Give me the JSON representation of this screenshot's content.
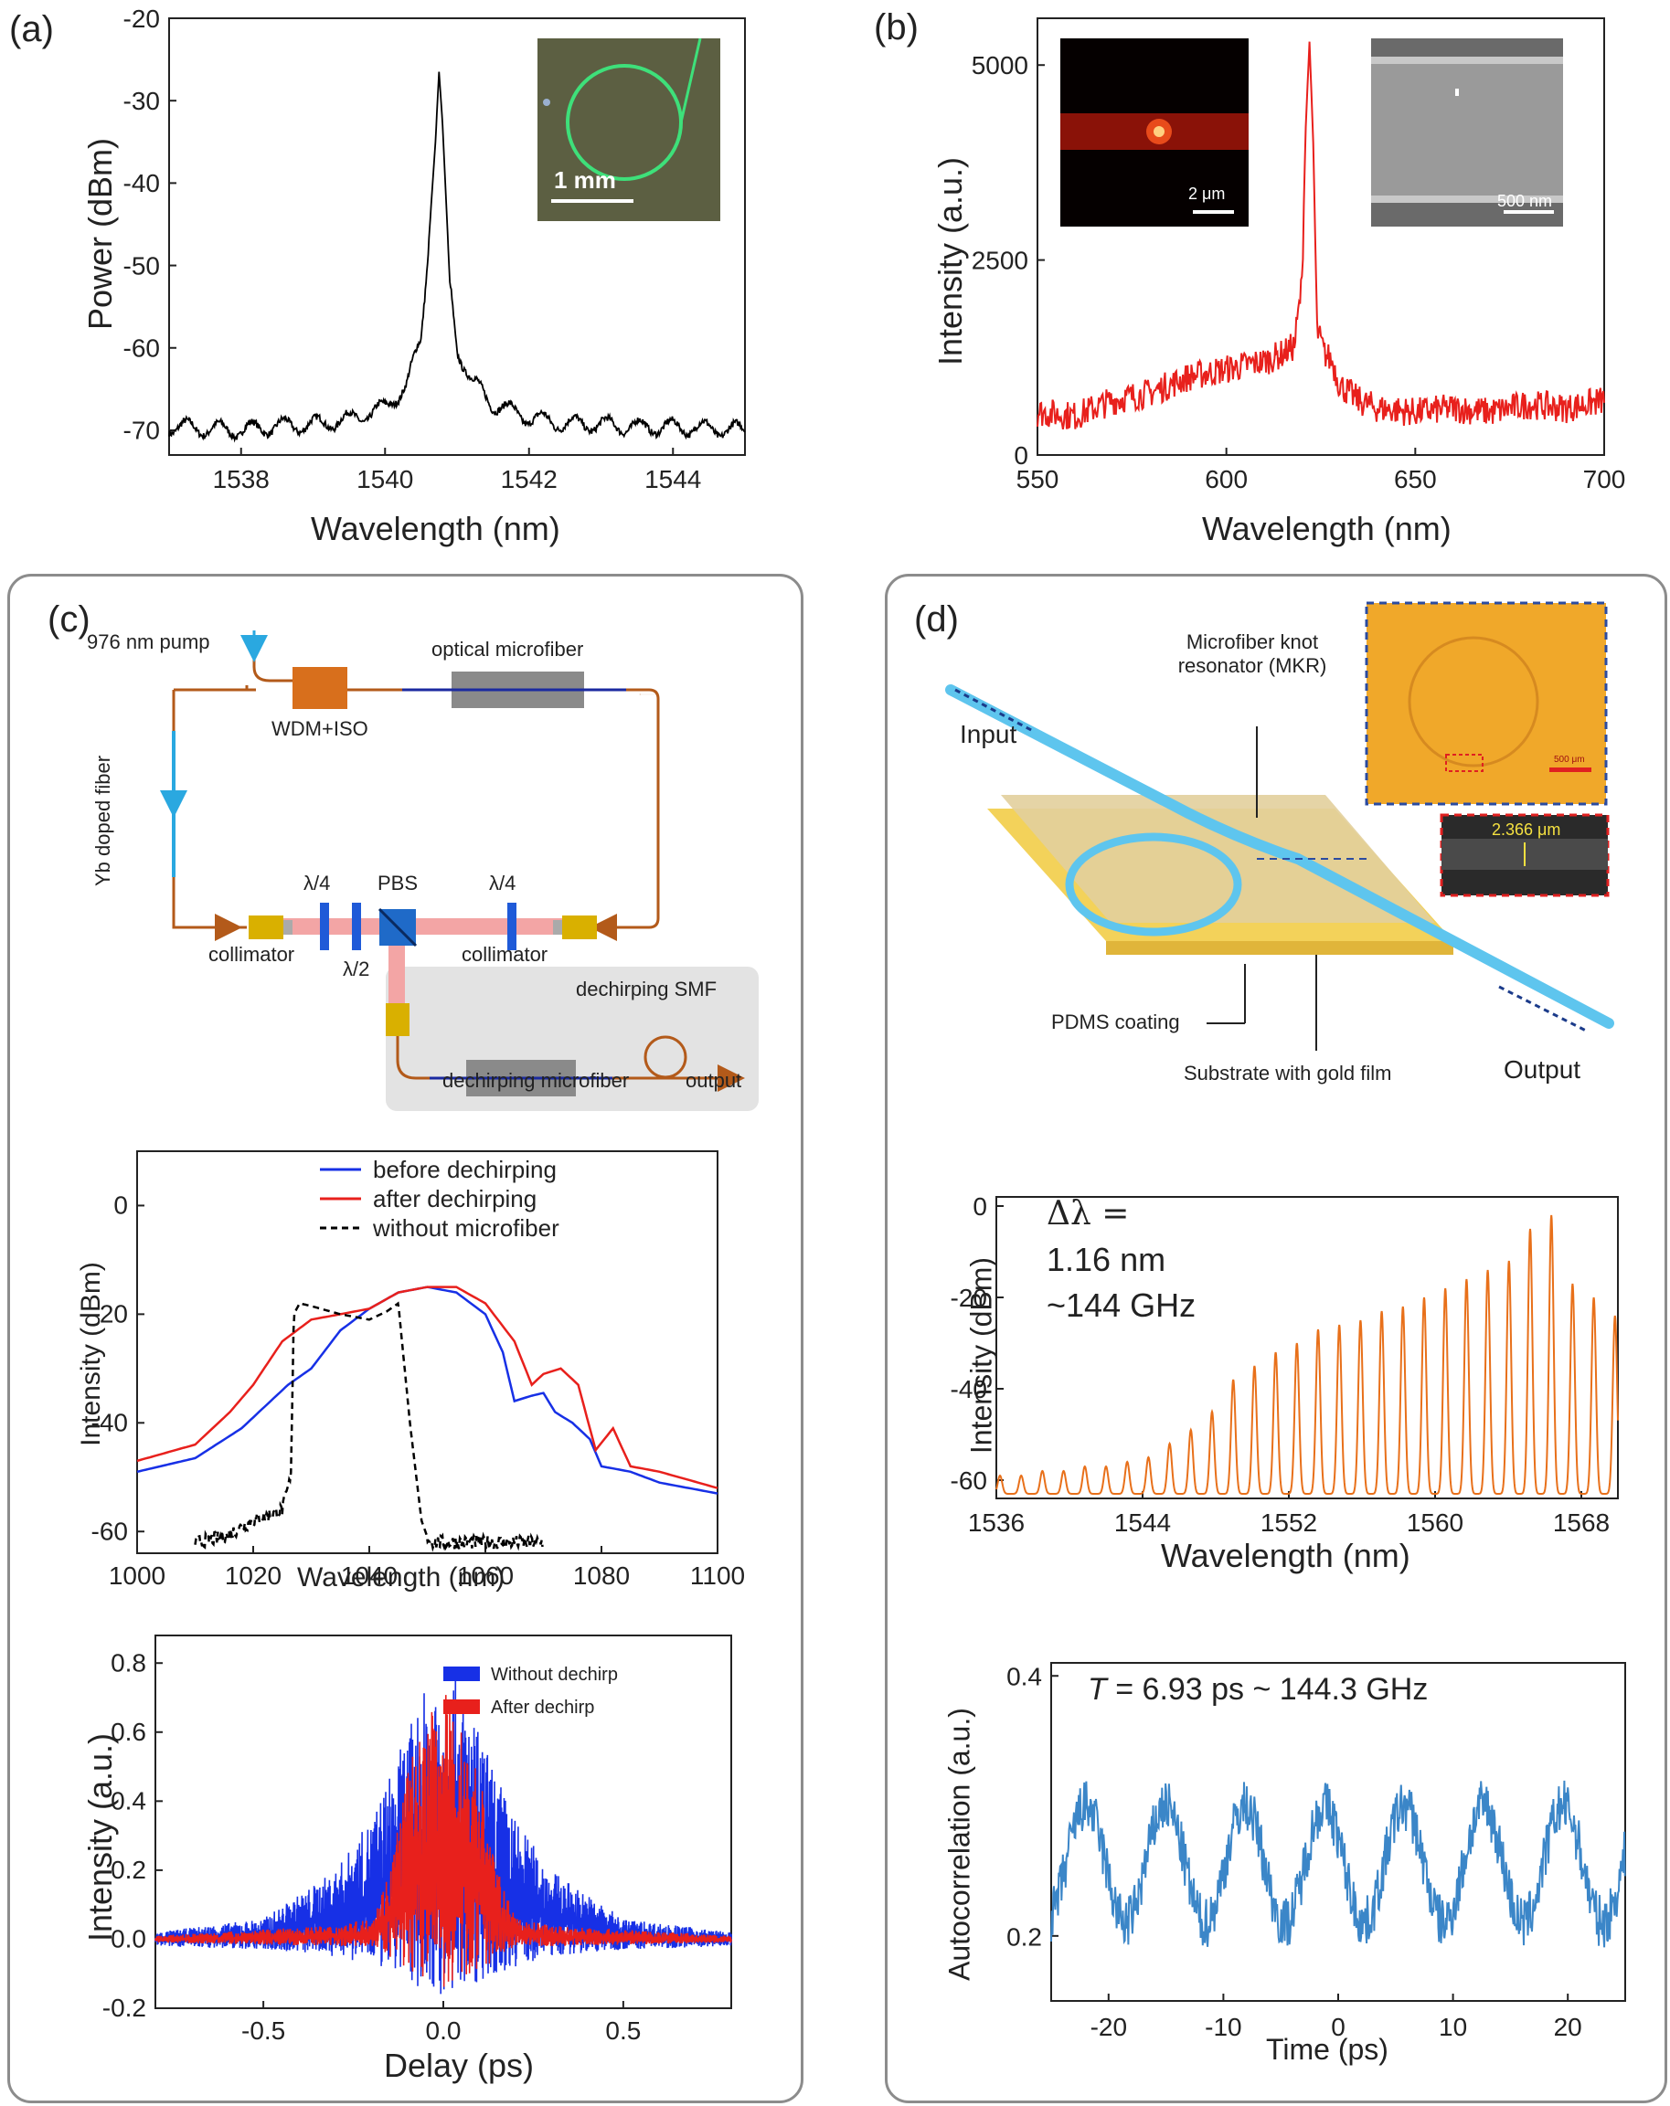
{
  "panels": {
    "a": "(a)",
    "b": "(b)",
    "c": "(c)",
    "d": "(d)"
  },
  "colors": {
    "black": "#000000",
    "red": "#e8201c",
    "blue": "#1730e6",
    "orange": "#e8701a",
    "steelblue": "#3b86c8",
    "fiber": "#b35a1a",
    "grey_box": "#e3e3e3"
  },
  "insets": {
    "a_scale": "1 mm",
    "b_left_scale": "2 μm",
    "b_right_scale": "500 nm",
    "d_scale_small": "500 μm",
    "d_width": "2.366 μm"
  },
  "schematic_c": {
    "pump": "976 nm pump",
    "wdm": "WDM+ISO",
    "microfiber": "optical microfiber",
    "yb": "Yb doped fiber",
    "qwp_left": "λ/4",
    "pbs": "PBS",
    "qwp_right": "λ/4",
    "hwp": "λ/2",
    "collimator_left": "collimator",
    "collimator_right": "collimator",
    "dechirp_smf": "dechirping SMF",
    "dechirp_mf": "dechirping microfiber",
    "output": "output"
  },
  "schematic_d": {
    "input": "Input",
    "output": "Output",
    "mkr": "Microfiber knot resonator (MKR)",
    "pdms": "PDMS coating",
    "substrate": "Substrate with gold film"
  },
  "annotations": {
    "d_spec_1": "Δλ =",
    "d_spec_2": "1.16 nm",
    "d_spec_3": "~144 GHz",
    "d_ac_T": "T",
    "d_ac_rest": " = 6.93 ps ~ 144.3 GHz"
  },
  "chart_data": [
    {
      "id": "a",
      "type": "line",
      "xlabel": "Wavelength (nm)",
      "ylabel": "Power (dBm)",
      "xlim": [
        1537,
        1545
      ],
      "ylim": [
        -73,
        -20
      ],
      "xticks": [
        1538,
        1540,
        1542,
        1544
      ],
      "yticks": [
        -20,
        -30,
        -40,
        -50,
        -60,
        -70
      ],
      "series": [
        {
          "color": "#000000",
          "x": [
            1537,
            1537.5,
            1538,
            1538.5,
            1539,
            1539.5,
            1540,
            1540.3,
            1540.5,
            1540.6,
            1540.7,
            1540.75,
            1540.8,
            1540.9,
            1541,
            1541.2,
            1541.5,
            1542,
            1542.5,
            1543,
            1543.5,
            1544,
            1544.5,
            1545
          ],
          "values": [
            -69.5,
            -69.8,
            -70,
            -69.5,
            -69.3,
            -68.7,
            -67.3,
            -64.5,
            -59,
            -48,
            -35,
            -26.5,
            -33,
            -52,
            -60,
            -64,
            -66.8,
            -68.5,
            -69.2,
            -69.3,
            -69.6,
            -69.6,
            -69.8,
            -70
          ]
        }
      ]
    },
    {
      "id": "b",
      "type": "line",
      "xlabel": "Wavelength (nm)",
      "ylabel": "Intensity (a.u.)",
      "xlim": [
        550,
        700
      ],
      "ylim": [
        0,
        5600
      ],
      "xticks": [
        550,
        600,
        650,
        700
      ],
      "yticks": [
        0,
        2500,
        5000
      ],
      "series": [
        {
          "color": "#e8201c",
          "x": [
            550,
            560,
            570,
            580,
            590,
            600,
            610,
            615,
            618,
            620,
            621,
            622,
            623,
            624,
            626,
            628,
            630,
            635,
            640,
            650,
            660,
            670,
            680,
            690,
            700
          ],
          "values": [
            550,
            500,
            700,
            800,
            1000,
            1100,
            1200,
            1300,
            1400,
            2200,
            4200,
            5300,
            4000,
            1600,
            1300,
            1200,
            900,
            700,
            600,
            550,
            600,
            550,
            650,
            600,
            700
          ]
        }
      ]
    },
    {
      "id": "c_spectrum",
      "type": "line",
      "xlabel": "Wavelength (nm)",
      "ylabel": "Intensity (dBm)",
      "xlim": [
        1000,
        1100
      ],
      "ylim": [
        -64,
        10
      ],
      "xticks": [
        1000,
        1020,
        1040,
        1060,
        1080,
        1100
      ],
      "yticks": [
        0,
        -20,
        -40,
        -60
      ],
      "legend": "top-right",
      "series": [
        {
          "name": "before dechirping",
          "color": "#1730e6",
          "x": [
            1000,
            1010,
            1018,
            1022,
            1026,
            1030,
            1035,
            1040,
            1045,
            1050,
            1055,
            1060,
            1063,
            1065,
            1068,
            1070,
            1072,
            1075,
            1078,
            1080,
            1085,
            1090,
            1100
          ],
          "values": [
            -49,
            -46.5,
            -41,
            -37,
            -33,
            -30,
            -23,
            -19,
            -16,
            -15,
            -16,
            -20,
            -27,
            -36,
            -35,
            -34.5,
            -38,
            -40,
            -43,
            -48,
            -49,
            -51,
            -53
          ]
        },
        {
          "name": "after dechirping",
          "color": "#e8201c",
          "x": [
            1000,
            1010,
            1016,
            1020,
            1025,
            1030,
            1035,
            1040,
            1045,
            1050,
            1055,
            1060,
            1065,
            1068,
            1070,
            1073,
            1076,
            1079,
            1082,
            1085,
            1090,
            1100
          ],
          "values": [
            -47,
            -44,
            -38,
            -33,
            -25,
            -21,
            -20,
            -19,
            -16,
            -15,
            -15,
            -18,
            -25,
            -33,
            -31,
            -30,
            -33,
            -45,
            -41,
            -48,
            -49,
            -52
          ]
        },
        {
          "name": "without microfiber",
          "color": "#000000",
          "dash": true,
          "x": [
            1010,
            1015,
            1020,
            1025,
            1026.5,
            1027,
            1028,
            1030,
            1035,
            1040,
            1043,
            1045,
            1047,
            1049,
            1050,
            1051,
            1055,
            1060,
            1065,
            1070
          ],
          "values": [
            -62,
            -61,
            -58,
            -56,
            -50,
            -20,
            -18,
            -18.5,
            -20,
            -21,
            -19.5,
            -18,
            -40,
            -58,
            -61,
            -62,
            -62,
            -62,
            -62,
            -62
          ]
        }
      ]
    },
    {
      "id": "c_autocorr",
      "type": "area",
      "xlabel": "Delay (ps)",
      "ylabel": "Intensity (a.u.)",
      "xlim": [
        -0.8,
        0.8
      ],
      "ylim": [
        -0.2,
        0.88
      ],
      "xticks": [
        -0.5,
        0.0,
        0.5
      ],
      "yticks": [
        -0.2,
        0.0,
        0.2,
        0.4,
        0.6,
        0.8
      ],
      "legend": "top-right",
      "series": [
        {
          "name": "Without dechirp",
          "color": "#1730e6",
          "x": [
            -0.8,
            -0.5,
            -0.3,
            -0.2,
            -0.1,
            0.0,
            0.1,
            0.2,
            0.3,
            0.5,
            0.8
          ],
          "upper": [
            0.02,
            0.06,
            0.2,
            0.35,
            0.6,
            0.85,
            0.6,
            0.35,
            0.2,
            0.06,
            0.02
          ],
          "lower": [
            -0.02,
            -0.03,
            -0.05,
            -0.08,
            -0.12,
            -0.18,
            -0.12,
            -0.08,
            -0.05,
            -0.03,
            -0.02
          ]
        },
        {
          "name": "After dechirp",
          "color": "#e8201c",
          "x": [
            -0.8,
            -0.3,
            -0.2,
            -0.15,
            -0.1,
            0.0,
            0.1,
            0.15,
            0.2,
            0.3,
            0.8
          ],
          "upper": [
            0.01,
            0.04,
            0.06,
            0.2,
            0.5,
            0.74,
            0.5,
            0.2,
            0.06,
            0.04,
            0.01
          ],
          "lower": [
            -0.01,
            -0.02,
            -0.02,
            -0.05,
            -0.1,
            -0.15,
            -0.1,
            -0.05,
            -0.02,
            -0.02,
            -0.01
          ]
        }
      ]
    },
    {
      "id": "d_spectrum",
      "type": "line",
      "xlabel": "Wavelength (nm)",
      "ylabel": "Intensity (dBm)",
      "xlim": [
        1536,
        1570
      ],
      "ylim": [
        -64,
        2
      ],
      "xticks": [
        1536,
        1544,
        1552,
        1560,
        1568
      ],
      "yticks": [
        0,
        -20,
        -40,
        -60
      ],
      "series": [
        {
          "color": "#e8701a",
          "comb_start": 1536.2,
          "comb_step": 1.16,
          "peaks": [
            -59,
            -59,
            -58,
            -58,
            -57,
            -57,
            -56,
            -55,
            -52,
            -49,
            -45,
            -38,
            -35,
            -32,
            -30,
            -27,
            -26,
            -25,
            -23,
            -22,
            -20,
            -18,
            -16,
            -14,
            -12,
            -5,
            -2,
            -17,
            -20,
            -24,
            -30,
            -42,
            -50,
            -55,
            -58,
            -60,
            -61,
            -62,
            -62
          ],
          "floor": -63
        }
      ]
    },
    {
      "id": "d_autocorr",
      "type": "line",
      "xlabel": "Time (ps)",
      "ylabel": "Autocorrelation (a.u.)",
      "xlim": [
        -25,
        25
      ],
      "ylim": [
        0.15,
        0.41
      ],
      "xticks": [
        -20,
        -10,
        0,
        10,
        20
      ],
      "yticks": [
        0.2,
        0.4
      ],
      "series": [
        {
          "color": "#3b86c8",
          "period_ps": 6.93,
          "mean": 0.255,
          "amplitude": 0.045,
          "noise": 0.02
        }
      ]
    }
  ]
}
